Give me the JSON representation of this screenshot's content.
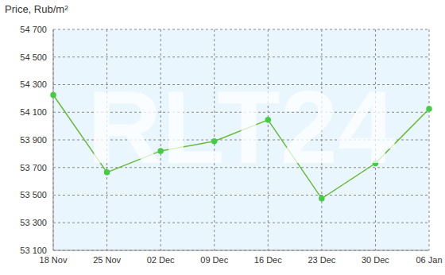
{
  "chart_data": {
    "type": "line",
    "title": "Price, Rub/m²",
    "categories": [
      "18 Nov",
      "25 Nov",
      "02 Dec",
      "09 Dec",
      "16 Dec",
      "23 Dec",
      "30 Dec",
      "06 Jan"
    ],
    "values": [
      54225,
      53665,
      53820,
      53890,
      54045,
      53475,
      53730,
      54125
    ],
    "color": "#66bb33",
    "marker": "circle",
    "ylim": [
      53100,
      54700
    ],
    "yticks": [
      {
        "value": 53100,
        "label": "53 100"
      },
      {
        "value": 53300,
        "label": "53 300"
      },
      {
        "value": 53500,
        "label": "53 500"
      },
      {
        "value": 53700,
        "label": "53 700"
      },
      {
        "value": 53900,
        "label": "53 900"
      },
      {
        "value": 54100,
        "label": "54 100"
      },
      {
        "value": 54300,
        "label": "54 300"
      },
      {
        "value": 54500,
        "label": "54 500"
      },
      {
        "value": 54700,
        "label": "54 700"
      }
    ],
    "grid": true,
    "annotations": [
      "RLT24"
    ]
  }
}
